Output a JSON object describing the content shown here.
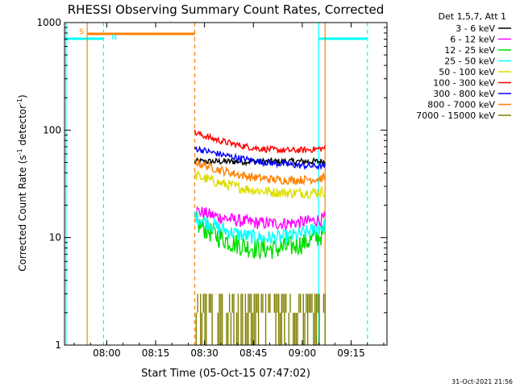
{
  "chart_data": {
    "type": "line",
    "title": "RHESSI Observing Summary Count Rates, Corrected",
    "xlabel": "Start Time (05-Oct-15 07:47:02)",
    "ylabel_main": "Corrected Count Rate (s",
    "ylabel_sup1": "-1",
    "ylabel_mid": " detector",
    "ylabel_sup2": "-1",
    "ylabel_end": ")",
    "footer": "31-Oct-2021 21:56",
    "yscale": "log",
    "ylim": [
      1,
      1000
    ],
    "xlim": [
      "07:47:02",
      "09:26:00"
    ],
    "x_ticks": [
      "08:00",
      "08:15",
      "08:30",
      "08:45",
      "09:00",
      "09:15"
    ],
    "y_ticks": [
      "1",
      "10",
      "100",
      "1000"
    ],
    "legend_title": "Det 1,5,7, Att 1",
    "legend_position": "top-right outside plot",
    "series": [
      {
        "name": "3 - 6 keV",
        "color": "#000000",
        "start": 51,
        "end": 51,
        "min": 51,
        "noise": 0.03
      },
      {
        "name": "6 - 12 keV",
        "color": "#ff00ff",
        "start": 18,
        "end": 15,
        "min": 12.5,
        "noise": 0.06
      },
      {
        "name": "12 - 25 keV",
        "color": "#00dd00",
        "start": 14,
        "end": 11,
        "min": 7,
        "noise": 0.1
      },
      {
        "name": "25 - 50 keV",
        "color": "#00ffff",
        "start": 16,
        "end": 13,
        "min": 9,
        "noise": 0.07
      },
      {
        "name": "50 - 100 keV",
        "color": "#dddd00",
        "start": 38,
        "end": 27,
        "min": 23,
        "noise": 0.05
      },
      {
        "name": "100 - 300 keV",
        "color": "#ff0000",
        "start": 95,
        "end": 68,
        "min": 57,
        "noise": 0.03
      },
      {
        "name": "300 - 800 keV",
        "color": "#0000ff",
        "start": 68,
        "end": 46,
        "min": 42,
        "noise": 0.03
      },
      {
        "name": "800 - 7000 keV",
        "color": "#ff7f00",
        "start": 51,
        "end": 36,
        "min": 30,
        "noise": 0.04
      },
      {
        "name": "7000 - 15000 keV",
        "color": "#808000",
        "start": 2,
        "end": 2,
        "min": 2,
        "noise": 0.0
      }
    ],
    "annotations": [
      {
        "label": "S",
        "type": "SAA",
        "color": "#ff7f00",
        "start": "07:54",
        "end": "08:27"
      },
      {
        "label": "N",
        "type": "Night",
        "color": "#00ffff",
        "start": "08:00",
        "end": "08:00"
      }
    ],
    "data_window": {
      "start": "08:27",
      "end": "09:07"
    },
    "night_bands": [
      {
        "start": "07:47:02",
        "end": "07:59",
        "color": "#00ffff"
      },
      {
        "start": "09:05",
        "end": "09:20",
        "color": "#00ffff"
      }
    ],
    "saa_band": {
      "start": "07:54",
      "end": "08:27",
      "color": "#ff7f00"
    },
    "vertical_lines": [
      {
        "time": "07:47:30",
        "color": "#00ffff",
        "style": "solid"
      },
      {
        "time": "07:54",
        "color": "#ff7f00",
        "style": "solid"
      },
      {
        "time": "07:59",
        "color": "#00ffff",
        "style": "dashed"
      },
      {
        "time": "08:27",
        "color": "#ff7f00",
        "style": "dashed"
      },
      {
        "time": "09:05",
        "color": "#00ffff",
        "style": "solid"
      },
      {
        "time": "09:07",
        "color": "#ff7f00",
        "style": "solid"
      },
      {
        "time": "09:20",
        "color": "#00ffff",
        "style": "dashed"
      }
    ]
  }
}
